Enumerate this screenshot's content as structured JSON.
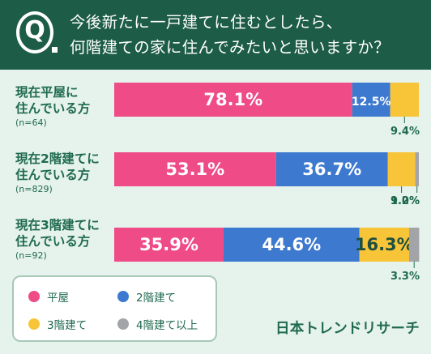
{
  "header": {
    "q_letter": "Q",
    "question_line1": "今後新たに一戸建てに住むとしたら、",
    "question_line2": "何階建ての家に住んでみたいと思いますか？"
  },
  "colors": {
    "header_bg": "#1d5c47",
    "background": "#e6f3ec",
    "text": "#1f6a4f",
    "flat": "#ee4b87",
    "two_story": "#3c79cf",
    "three_story": "#f8c538",
    "four_plus": "#a3a4a8"
  },
  "legend": [
    {
      "label": "平屋",
      "color": "#ee4b87"
    },
    {
      "label": "2階建て",
      "color": "#3c79cf"
    },
    {
      "label": "3階建て",
      "color": "#f8c538"
    },
    {
      "label": "4階建て以上",
      "color": "#a3a4a8"
    }
  ],
  "brand": "日本トレンドリサーチ",
  "chart_data": {
    "type": "bar",
    "orientation": "horizontal",
    "stacked": true,
    "unit": "%",
    "categories": [
      "現在平屋に住んでいる方 (n=64)",
      "現在2階建てに住んでいる方 (n=829)",
      "現在3階建てに住んでいる方 (n=92)"
    ],
    "row_labels": [
      {
        "line1": "現在平屋に",
        "line2": "住んでいる方",
        "n": "(n=64)"
      },
      {
        "line1": "現在2階建てに",
        "line2": "住んでいる方",
        "n": "(n=829)"
      },
      {
        "line1": "現在3階建てに",
        "line2": "住んでいる方",
        "n": "(n=92)"
      }
    ],
    "series": [
      {
        "name": "平屋",
        "color": "#ee4b87",
        "values": [
          78.1,
          53.1,
          35.9
        ]
      },
      {
        "name": "2階建て",
        "color": "#3c79cf",
        "values": [
          12.5,
          36.7,
          44.6
        ]
      },
      {
        "name": "3階建て",
        "color": "#f8c538",
        "values": [
          9.4,
          9.0,
          16.3
        ]
      },
      {
        "name": "4階建て以上",
        "color": "#a3a4a8",
        "values": [
          0,
          1.2,
          3.3
        ]
      }
    ],
    "value_labels": [
      [
        "78.1%",
        "12.5%",
        "9.4%",
        ""
      ],
      [
        "53.1%",
        "36.7%",
        "9.0%",
        "1.2%"
      ],
      [
        "35.9%",
        "44.6%",
        "16.3%",
        "3.3%"
      ]
    ],
    "xlim": [
      0,
      100
    ]
  }
}
